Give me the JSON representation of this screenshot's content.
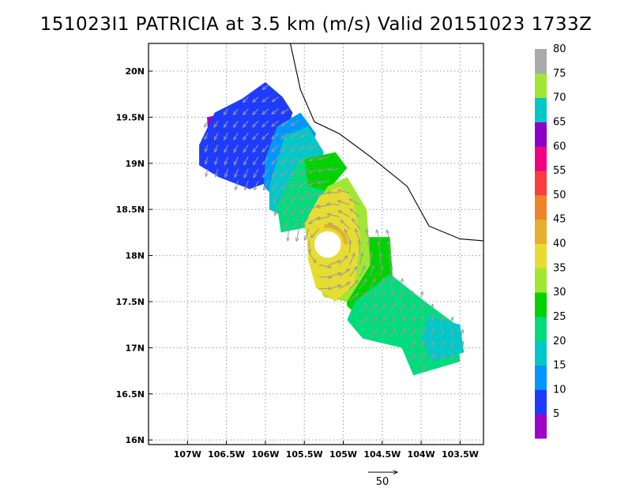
{
  "chart_data": {
    "type": "heatmap",
    "title": "151023I1 PATRICIA at 3.5 km (m/s) Valid 20151023 1733Z",
    "xlim": [
      -107.5,
      -103.2
    ],
    "ylim": [
      15.95,
      20.3
    ],
    "x_ticks": [
      -107,
      -106.5,
      -106,
      -105.5,
      -105,
      -104.5,
      -104,
      -103.5
    ],
    "x_tick_labels": [
      "107W",
      "106.5W",
      "106W",
      "105.5W",
      "105W",
      "104.5W",
      "104W",
      "103.5W"
    ],
    "y_ticks": [
      16,
      16.5,
      17,
      17.5,
      18,
      18.5,
      19,
      19.5,
      20
    ],
    "y_tick_labels": [
      "16N",
      "16.5N",
      "17N",
      "17.5N",
      "18N",
      "18.5N",
      "19N",
      "19.5N",
      "20N"
    ],
    "grid": true,
    "colorbar": {
      "labels": [
        "5",
        "10",
        "15",
        "20",
        "25",
        "30",
        "35",
        "40",
        "45",
        "50",
        "55",
        "60",
        "65",
        "70",
        "75",
        "80"
      ],
      "colors": [
        "#a000c8",
        "#1e3cff",
        "#0096ff",
        "#00c8c8",
        "#00dc7c",
        "#00d200",
        "#a0e632",
        "#e6dc32",
        "#e6af2d",
        "#f08228",
        "#fa3c3c",
        "#f00082",
        "#8c00c8",
        "#00c8c8",
        "#a0e632",
        "#aaaaaa"
      ]
    },
    "coastline": [
      [
        -105.68,
        20.3
      ],
      [
        -105.55,
        19.8
      ],
      [
        -105.37,
        19.45
      ],
      [
        -105.05,
        19.32
      ],
      [
        -104.65,
        19.07
      ],
      [
        -104.18,
        18.75
      ],
      [
        -103.9,
        18.32
      ],
      [
        -103.5,
        18.18
      ],
      [
        -103.2,
        18.16
      ]
    ],
    "storm_center": [
      -105.2,
      18.12
    ],
    "eye_radius_deg": 0.17,
    "bands": [
      {
        "name": "purple",
        "color": "#a000c8",
        "polygon": [
          [
            -106.75,
            19.5
          ],
          [
            -106.45,
            19.55
          ],
          [
            -106.35,
            19.28
          ],
          [
            -106.55,
            19.05
          ],
          [
            -106.72,
            19.12
          ]
        ]
      },
      {
        "name": "blue",
        "color": "#1e3cff",
        "polygon": [
          [
            -106.85,
            19.2
          ],
          [
            -106.65,
            19.55
          ],
          [
            -106.3,
            19.7
          ],
          [
            -106.0,
            19.88
          ],
          [
            -105.78,
            19.72
          ],
          [
            -105.65,
            19.55
          ],
          [
            -105.8,
            19.15
          ],
          [
            -105.95,
            18.8
          ],
          [
            -106.2,
            18.72
          ],
          [
            -106.6,
            18.85
          ],
          [
            -106.85,
            18.98
          ]
        ]
      },
      {
        "name": "light-blue",
        "color": "#0096ff",
        "polygon": [
          [
            -106.0,
            19.05
          ],
          [
            -105.85,
            19.4
          ],
          [
            -105.55,
            19.55
          ],
          [
            -105.35,
            19.32
          ],
          [
            -105.55,
            18.85
          ],
          [
            -105.85,
            18.6
          ],
          [
            -106.02,
            18.75
          ]
        ]
      },
      {
        "name": "cyan",
        "color": "#00c8c8",
        "polygon": [
          [
            -105.95,
            18.75
          ],
          [
            -105.75,
            19.3
          ],
          [
            -105.45,
            19.4
          ],
          [
            -105.25,
            19.12
          ],
          [
            -105.4,
            18.75
          ],
          [
            -105.7,
            18.4
          ],
          [
            -105.95,
            18.5
          ]
        ]
      },
      {
        "name": "teal",
        "color": "#00dc7c",
        "polygon": [
          [
            -105.85,
            18.55
          ],
          [
            -105.55,
            19.05
          ],
          [
            -105.2,
            19.05
          ],
          [
            -105.2,
            18.6
          ],
          [
            -105.5,
            18.3
          ],
          [
            -105.8,
            18.25
          ]
        ]
      },
      {
        "name": "green-north",
        "color": "#00d200",
        "polygon": [
          [
            -105.5,
            19.05
          ],
          [
            -105.1,
            19.12
          ],
          [
            -104.95,
            18.95
          ],
          [
            -105.2,
            18.7
          ],
          [
            -105.45,
            18.75
          ]
        ]
      },
      {
        "name": "green-band",
        "color": "#00d200",
        "polygon": [
          [
            -104.8,
            18.2
          ],
          [
            -104.4,
            18.2
          ],
          [
            -104.35,
            17.55
          ],
          [
            -104.6,
            17.2
          ],
          [
            -104.95,
            17.45
          ],
          [
            -105.0,
            17.9
          ]
        ]
      },
      {
        "name": "teal-south",
        "color": "#00dc7c",
        "polygon": [
          [
            -104.85,
            17.5
          ],
          [
            -104.4,
            17.8
          ],
          [
            -103.95,
            17.5
          ],
          [
            -103.55,
            17.25
          ],
          [
            -103.5,
            16.85
          ],
          [
            -104.1,
            16.7
          ],
          [
            -104.25,
            17.0
          ],
          [
            -104.75,
            17.1
          ],
          [
            -104.95,
            17.3
          ]
        ]
      },
      {
        "name": "cyan-south",
        "color": "#00c8c8",
        "polygon": [
          [
            -103.9,
            17.35
          ],
          [
            -103.5,
            17.25
          ],
          [
            -103.45,
            16.95
          ],
          [
            -103.85,
            16.85
          ],
          [
            -104.0,
            17.1
          ]
        ]
      },
      {
        "name": "green-light",
        "color": "#a0e632",
        "polygon": [
          [
            -105.2,
            18.75
          ],
          [
            -104.95,
            18.85
          ],
          [
            -104.7,
            18.5
          ],
          [
            -104.65,
            17.9
          ],
          [
            -104.95,
            17.5
          ],
          [
            -105.25,
            17.55
          ],
          [
            -105.4,
            17.85
          ],
          [
            -105.5,
            18.35
          ]
        ]
      },
      {
        "name": "yellow",
        "color": "#e6dc32",
        "polygon": [
          [
            -105.05,
            18.75
          ],
          [
            -104.88,
            18.62
          ],
          [
            -104.78,
            18.2
          ],
          [
            -104.85,
            17.7
          ],
          [
            -105.1,
            17.5
          ],
          [
            -105.35,
            17.65
          ],
          [
            -105.45,
            17.95
          ],
          [
            -105.48,
            18.38
          ],
          [
            -105.3,
            18.65
          ]
        ]
      }
    ],
    "legend_vector": {
      "label": "50"
    }
  }
}
